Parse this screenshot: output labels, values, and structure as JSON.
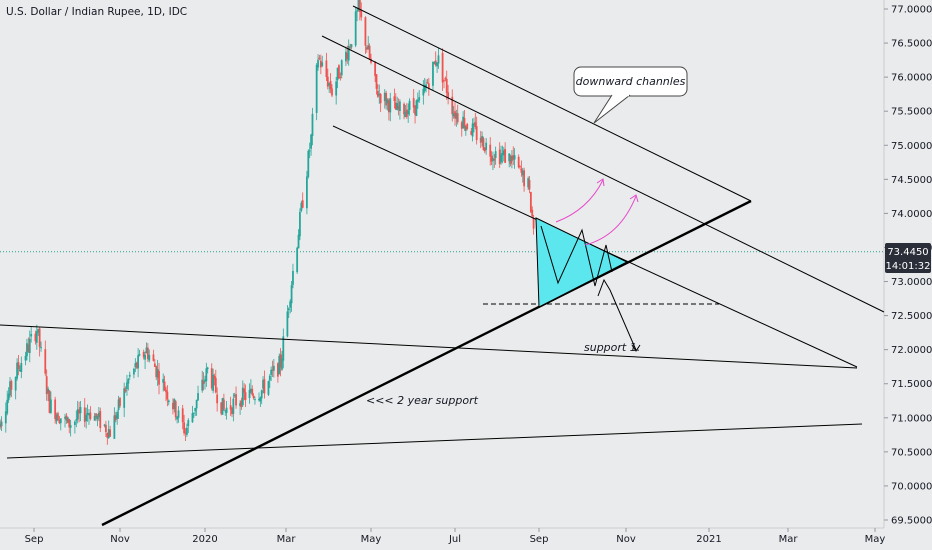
{
  "header": {
    "title": "U.S. Dollar / Indian Rupee, 1D, IDC"
  },
  "price_tag": {
    "value": "73.4450",
    "countdown": "14:01:32"
  },
  "annotations": {
    "channels_label": "downward channles",
    "support_label": "support 1.",
    "two_year_label": "<<< 2 year support"
  },
  "colors": {
    "background": "#eaebec",
    "up": "#26a69a",
    "down": "#ef5350",
    "wick": "#333333",
    "triangle_fill": "#5ce6ee",
    "arrow": "#e64acb",
    "price_tag": "#2a2e39"
  },
  "chart_data": {
    "type": "candlestick",
    "title": "U.S. Dollar / Indian Rupee, 1D, IDC",
    "x_ticks": [
      "Sep",
      "Nov",
      "2020",
      "Mar",
      "May",
      "Jul",
      "Sep",
      "Nov",
      "2021",
      "Mar",
      "May"
    ],
    "y_ticks": [
      "77.0000",
      "76.5000",
      "76.0000",
      "75.5000",
      "75.0000",
      "74.5000",
      "74.0000",
      "73.5000",
      "73.0000",
      "72.5000",
      "72.0000",
      "71.5000",
      "71.0000",
      "70.5000",
      "70.0000",
      "69.5000"
    ],
    "ylim": [
      69.45,
      77.1
    ],
    "last_price": 73.445,
    "price_path": [
      [
        "2019-08-05",
        70.8
      ],
      [
        "2019-08-20",
        71.7
      ],
      [
        "2019-09-03",
        72.3
      ],
      [
        "2019-09-12",
        71.2
      ],
      [
        "2019-09-25",
        70.9
      ],
      [
        "2019-10-10",
        71.1
      ],
      [
        "2019-10-25",
        70.8
      ],
      [
        "2019-11-08",
        71.6
      ],
      [
        "2019-11-20",
        72.0
      ],
      [
        "2019-12-02",
        71.5
      ],
      [
        "2019-12-18",
        70.8
      ],
      [
        "2020-01-03",
        71.7
      ],
      [
        "2020-01-15",
        71.1
      ],
      [
        "2020-01-28",
        71.3
      ],
      [
        "2020-02-12",
        71.4
      ],
      [
        "2020-02-26",
        71.8
      ],
      [
        "2020-03-09",
        73.6
      ],
      [
        "2020-03-19",
        75.1
      ],
      [
        "2020-03-24",
        76.3
      ],
      [
        "2020-04-03",
        75.8
      ],
      [
        "2020-04-16",
        76.5
      ],
      [
        "2020-04-22",
        77.0
      ],
      [
        "2020-05-05",
        75.8
      ],
      [
        "2020-05-20",
        75.5
      ],
      [
        "2020-06-05",
        75.6
      ],
      [
        "2020-06-18",
        76.3
      ],
      [
        "2020-06-30",
        75.5
      ],
      [
        "2020-07-15",
        75.2
      ],
      [
        "2020-07-28",
        74.9
      ],
      [
        "2020-08-12",
        74.8
      ],
      [
        "2020-08-24",
        74.4
      ],
      [
        "2020-09-01",
        73.2
      ],
      [
        "2020-09-05",
        73.3
      ],
      [
        "2020-09-08",
        73.45
      ]
    ],
    "drawings": {
      "pattern": "symmetrical triangle",
      "support_level": 72.65,
      "two_year_support": true,
      "channels": "downward"
    }
  }
}
